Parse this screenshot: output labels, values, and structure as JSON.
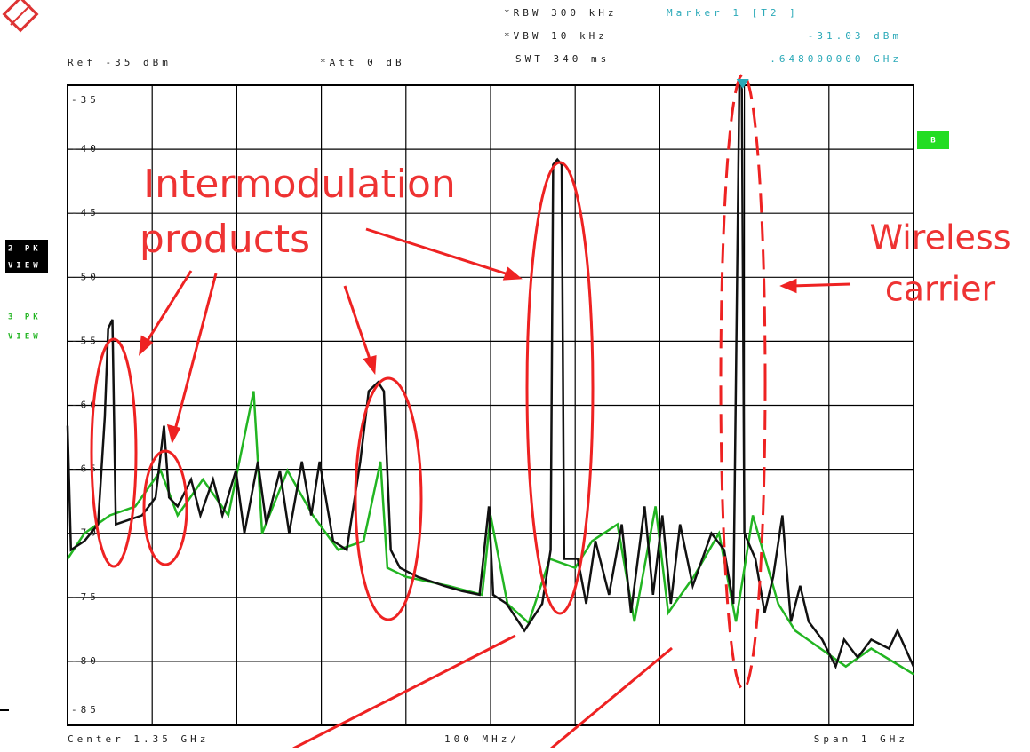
{
  "chart_data": {
    "type": "line",
    "header": {
      "rbw": "*RBW 300 kHz",
      "vbw": "*VBW 10 kHz",
      "swt": "SWT 340 ms",
      "ref": "Ref -35 dBm",
      "att": "*Att 0 dB",
      "marker_name": "Marker 1 [T2 ]"
    },
    "marker": {
      "x": {
        "value": 1.648,
        "label": ".648000000 GHz"
      },
      "y": {
        "value": -31.03,
        "label": "-31.03 dBm"
      }
    },
    "footer": {
      "center": "Center 1.35 GHz",
      "div": "100 MHz/",
      "span": "Span 1 GHz"
    },
    "side": {
      "trace2": [
        "2 PK",
        "VIEW"
      ],
      "trace3": [
        "3 PK",
        "VIEW"
      ],
      "badge": "B"
    },
    "annotations": {
      "intermod": [
        "Intermodulation",
        "products"
      ],
      "carrier": [
        "Wireless",
        "carrier"
      ]
    },
    "xlim": [
      0.85,
      1.85
    ],
    "xticks": [
      0.85,
      0.95,
      1.05,
      1.15,
      1.25,
      1.35,
      1.45,
      1.55,
      1.65,
      1.75,
      1.85
    ],
    "ylim": [
      -85,
      -35
    ],
    "yticks": [
      -35,
      -40,
      -45,
      -50,
      -55,
      -60,
      -65,
      -70,
      -75,
      -80,
      -85
    ],
    "grid": true,
    "series": [
      {
        "name": "3 PK",
        "color": "#22b522",
        "x": [
          0.85,
          0.87,
          0.9,
          0.93,
          0.96,
          0.98,
          1.01,
          1.04,
          1.07,
          1.08,
          1.11,
          1.14,
          1.17,
          1.2,
          1.22,
          1.228,
          1.25,
          1.3,
          1.34,
          1.35,
          1.37,
          1.395,
          1.42,
          1.45,
          1.47,
          1.5,
          1.52,
          1.545,
          1.56,
          1.59,
          1.62,
          1.64,
          1.66,
          1.69,
          1.71,
          1.74,
          1.77,
          1.8,
          1.85
        ],
        "values": [
          -72.0,
          -70.0,
          -68.6,
          -67.9,
          -65.1,
          -68.6,
          -65.8,
          -68.6,
          -58.9,
          -70.0,
          -65.1,
          -68.6,
          -71.3,
          -70.6,
          -64.4,
          -72.7,
          -73.4,
          -74.1,
          -74.8,
          -68.6,
          -75.5,
          -77.0,
          -72.0,
          -72.7,
          -70.6,
          -69.3,
          -76.9,
          -67.9,
          -76.2,
          -73.4,
          -70.0,
          -76.9,
          -68.6,
          -75.5,
          -77.6,
          -79.0,
          -80.4,
          -79.0,
          -81.0
        ]
      },
      {
        "name": "2 PK",
        "color": "#111111",
        "x": [
          0.85,
          0.854,
          0.87,
          0.886,
          0.894,
          0.898,
          0.903,
          0.907,
          0.938,
          0.954,
          0.964,
          0.97,
          0.98,
          0.996,
          1.007,
          1.022,
          1.033,
          1.049,
          1.059,
          1.075,
          1.085,
          1.101,
          1.112,
          1.127,
          1.138,
          1.148,
          1.164,
          1.18,
          1.196,
          1.206,
          1.217,
          1.224,
          1.232,
          1.243,
          1.264,
          1.295,
          1.316,
          1.337,
          1.348,
          1.353,
          1.369,
          1.39,
          1.411,
          1.421,
          1.424,
          1.429,
          1.434,
          1.437,
          1.453,
          1.463,
          1.474,
          1.49,
          1.505,
          1.516,
          1.532,
          1.542,
          1.553,
          1.563,
          1.574,
          1.589,
          1.611,
          1.626,
          1.637,
          1.644,
          1.647,
          1.65,
          1.663,
          1.674,
          1.684,
          1.695,
          1.705,
          1.716,
          1.726,
          1.742,
          1.758,
          1.768,
          1.784,
          1.8,
          1.821,
          1.831,
          1.85
        ],
        "values": [
          -61.6,
          -71.3,
          -70.6,
          -69.3,
          -60.9,
          -54.0,
          -53.3,
          -69.3,
          -68.6,
          -67.2,
          -61.6,
          -67.2,
          -67.9,
          -65.8,
          -68.6,
          -65.8,
          -68.6,
          -65.1,
          -70.0,
          -64.4,
          -69.3,
          -65.1,
          -70.0,
          -64.4,
          -68.6,
          -64.4,
          -70.6,
          -71.3,
          -64.4,
          -58.9,
          -58.2,
          -58.9,
          -71.3,
          -72.7,
          -73.4,
          -74.1,
          -74.5,
          -74.8,
          -67.9,
          -74.8,
          -75.5,
          -77.6,
          -75.5,
          -71.3,
          -41.2,
          -40.8,
          -41.2,
          -72.0,
          -72.0,
          -75.5,
          -70.6,
          -74.8,
          -69.3,
          -76.2,
          -67.9,
          -74.8,
          -68.6,
          -75.5,
          -69.3,
          -74.1,
          -70.0,
          -71.3,
          -75.5,
          -35.0,
          -35.0,
          -70.0,
          -72.0,
          -76.2,
          -73.4,
          -68.6,
          -76.9,
          -74.1,
          -76.9,
          -78.3,
          -80.4,
          -78.3,
          -79.7,
          -78.3,
          -79.0,
          -77.6,
          -80.4
        ]
      }
    ]
  }
}
